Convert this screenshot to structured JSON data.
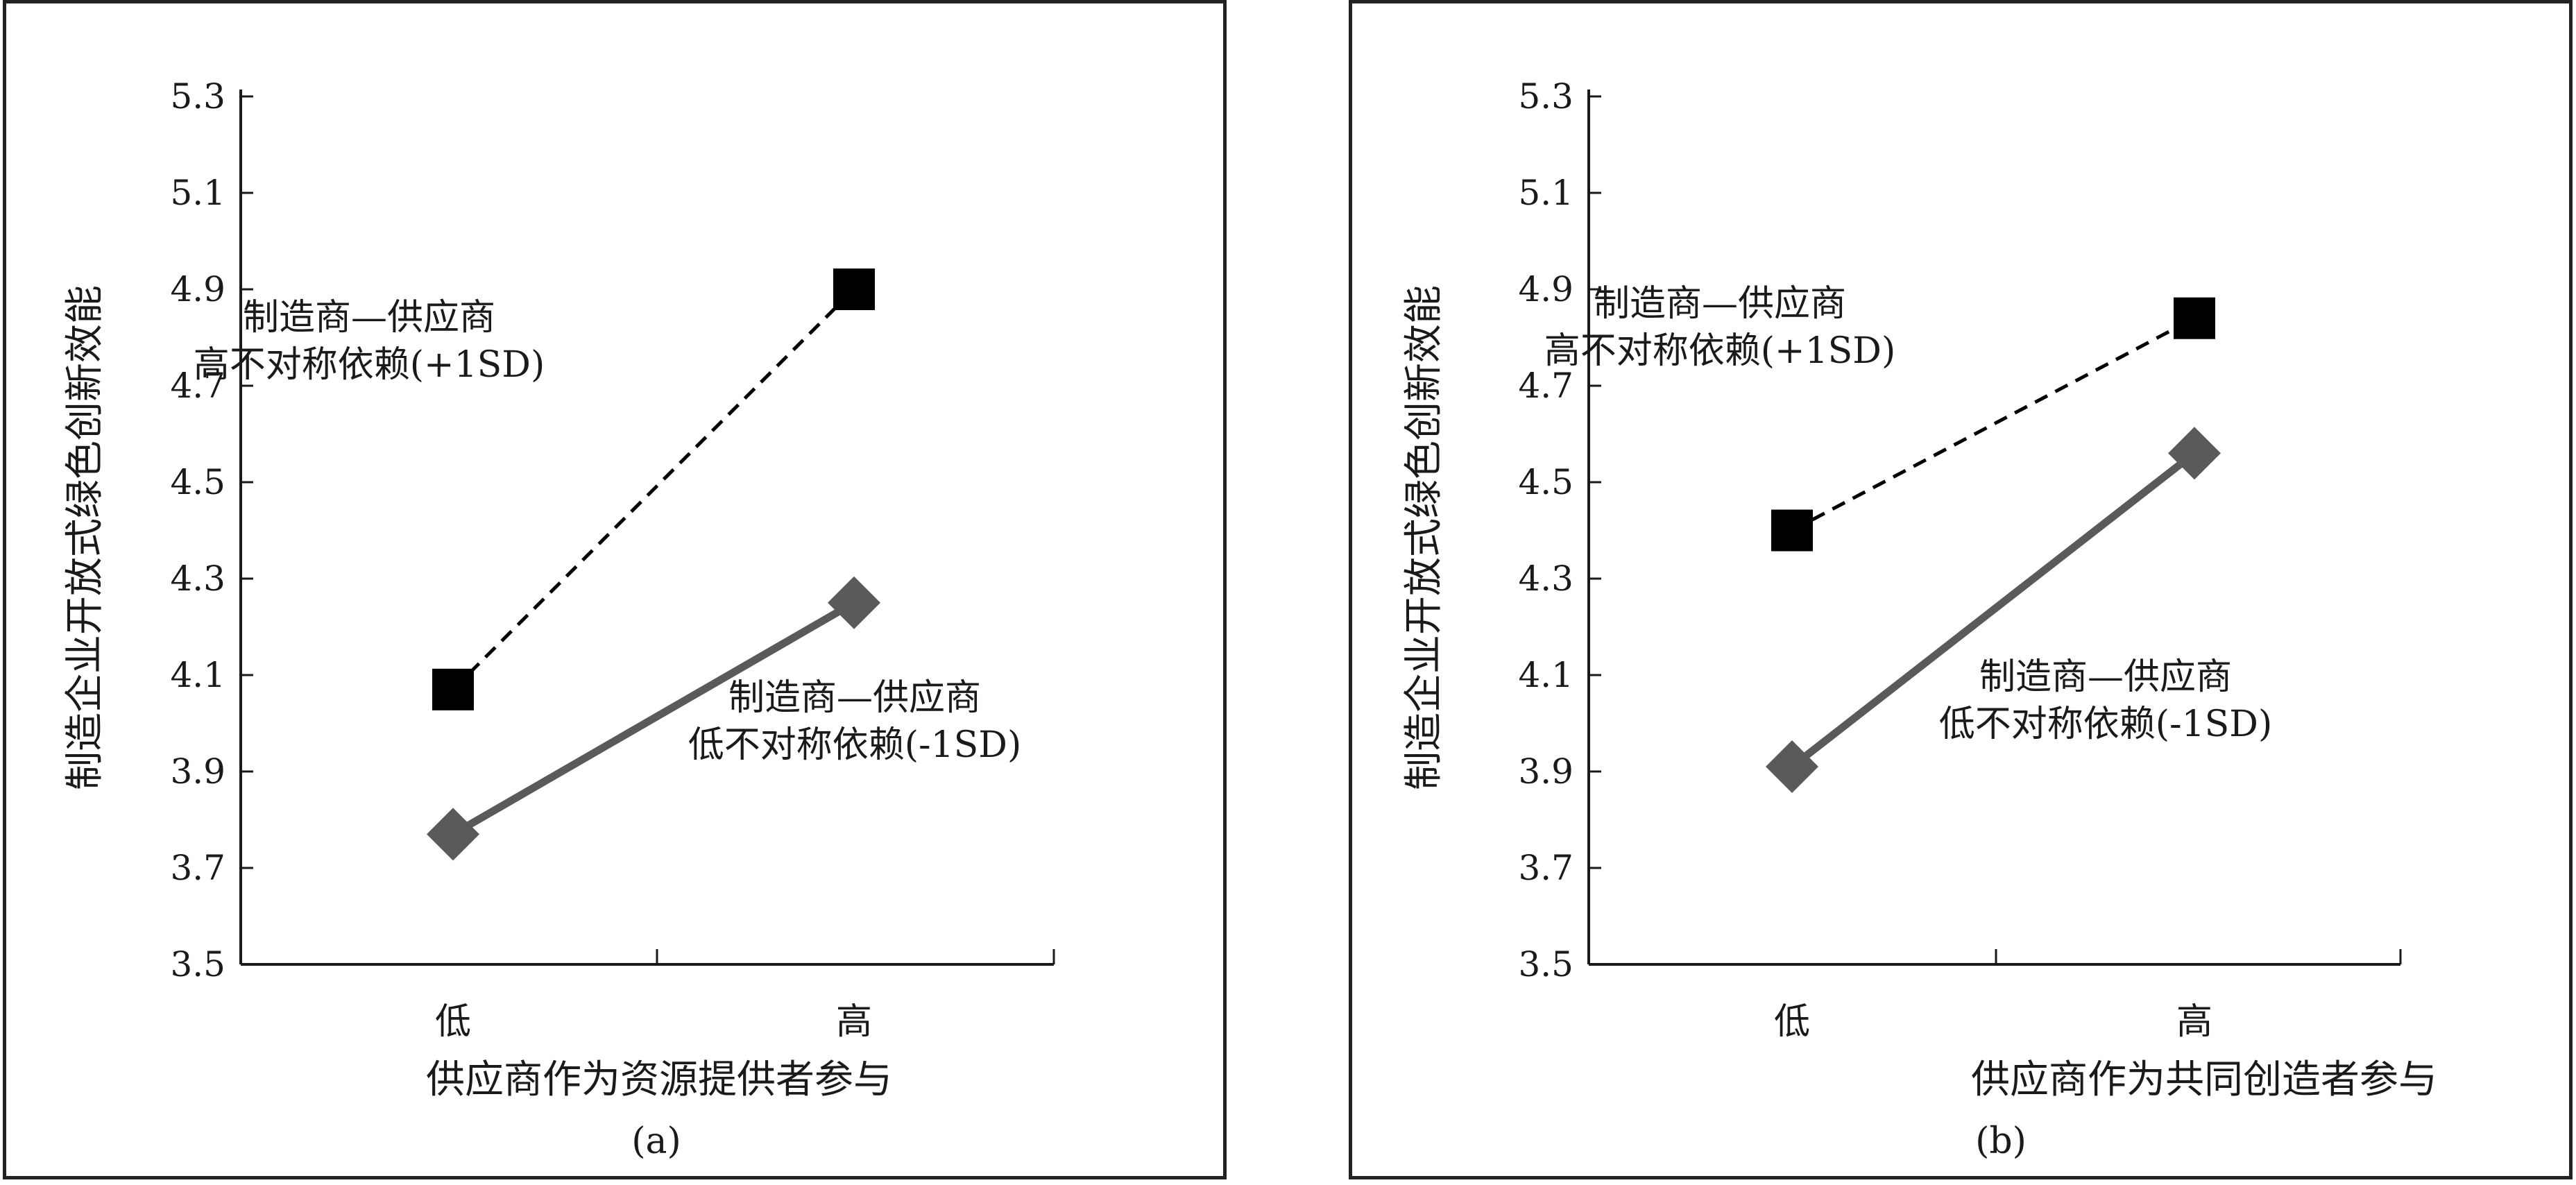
{
  "chart_data": [
    {
      "type": "line",
      "panel_label": "(a)",
      "xlabel": "供应商作为资源提供者参与",
      "ylabel": "制造企业开放式绿色创新效能",
      "categories": [
        "低",
        "高"
      ],
      "ylim": [
        3.5,
        5.3
      ],
      "yticks": [
        "3.5",
        "3.7",
        "3.9",
        "4.1",
        "4.3",
        "4.5",
        "4.7",
        "4.9",
        "5.1",
        "5.3"
      ],
      "series": [
        {
          "values": [
            4.07,
            4.9
          ],
          "line_style": "dashed",
          "marker": "square",
          "color": "#000000",
          "annotation": [
            "制造商—供应商",
            "高不对称依赖(+1SD)"
          ]
        },
        {
          "values": [
            3.77,
            4.25
          ],
          "line_style": "solid",
          "marker": "diamond",
          "color": "#5a5a5a",
          "annotation": [
            "制造商—供应商",
            "低不对称依赖(-1SD)"
          ]
        }
      ]
    },
    {
      "type": "line",
      "panel_label": "(b)",
      "xlabel": "供应商作为共同创造者参与",
      "ylabel": "制造企业开放式绿色创新效能",
      "categories": [
        "低",
        "高"
      ],
      "ylim": [
        3.5,
        5.3
      ],
      "yticks": [
        "3.5",
        "3.7",
        "3.9",
        "4.1",
        "4.3",
        "4.5",
        "4.7",
        "4.9",
        "5.1",
        "5.3"
      ],
      "series": [
        {
          "values": [
            4.4,
            4.84
          ],
          "line_style": "dashed",
          "marker": "square",
          "color": "#000000",
          "annotation": [
            "制造商—供应商",
            "高不对称依赖(+1SD)"
          ]
        },
        {
          "values": [
            3.91,
            4.56
          ],
          "line_style": "solid",
          "marker": "diamond",
          "color": "#5a5a5a",
          "annotation": [
            "制造商—供应商",
            "低不对称依赖(-1SD)"
          ]
        }
      ]
    }
  ]
}
